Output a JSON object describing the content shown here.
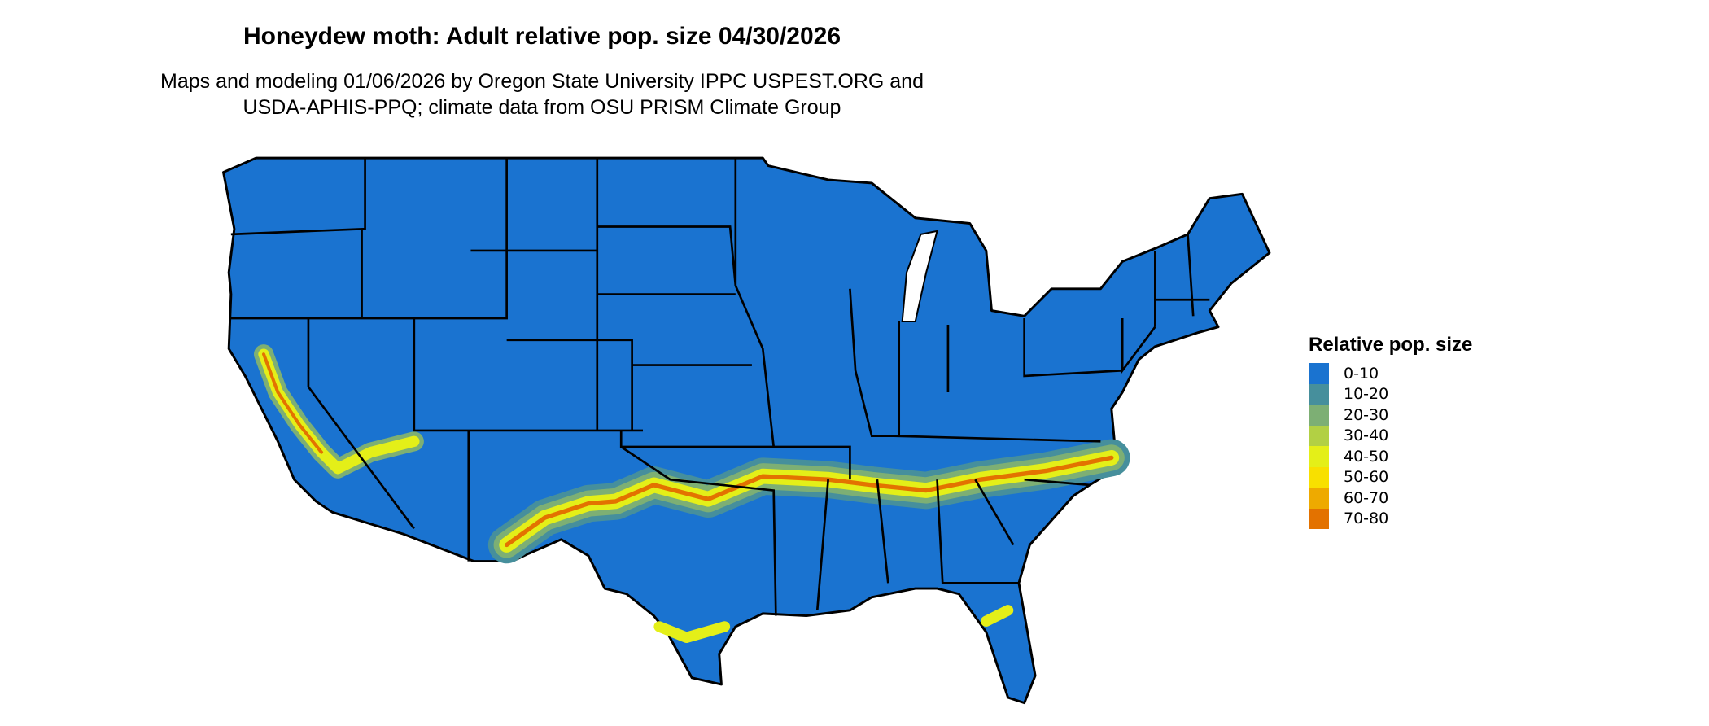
{
  "title": "Honeydew moth: Adult relative pop. size 04/30/2026",
  "subtitle_lines": [
    "Maps and modeling 01/06/2026 by Oregon State University IPPC USPEST.ORG and",
    "USDA-APHIS-PPQ; climate data from OSU PRISM Climate Group"
  ],
  "legend": {
    "title": "Relative pop. size",
    "items": [
      {
        "label": "0-10",
        "color": "#1a73d0"
      },
      {
        "label": "10-20",
        "color": "#468f9c"
      },
      {
        "label": "20-30",
        "color": "#7daf74"
      },
      {
        "label": "30-40",
        "color": "#b2d044"
      },
      {
        "label": "40-50",
        "color": "#e4ef18"
      },
      {
        "label": "50-60",
        "color": "#f8e000"
      },
      {
        "label": "60-70",
        "color": "#eeaa00"
      },
      {
        "label": "70-80",
        "color": "#e37200"
      }
    ]
  },
  "map": {
    "region": "Contiguous United States",
    "base_color": "#1a73d0",
    "border_color": "#000000"
  }
}
